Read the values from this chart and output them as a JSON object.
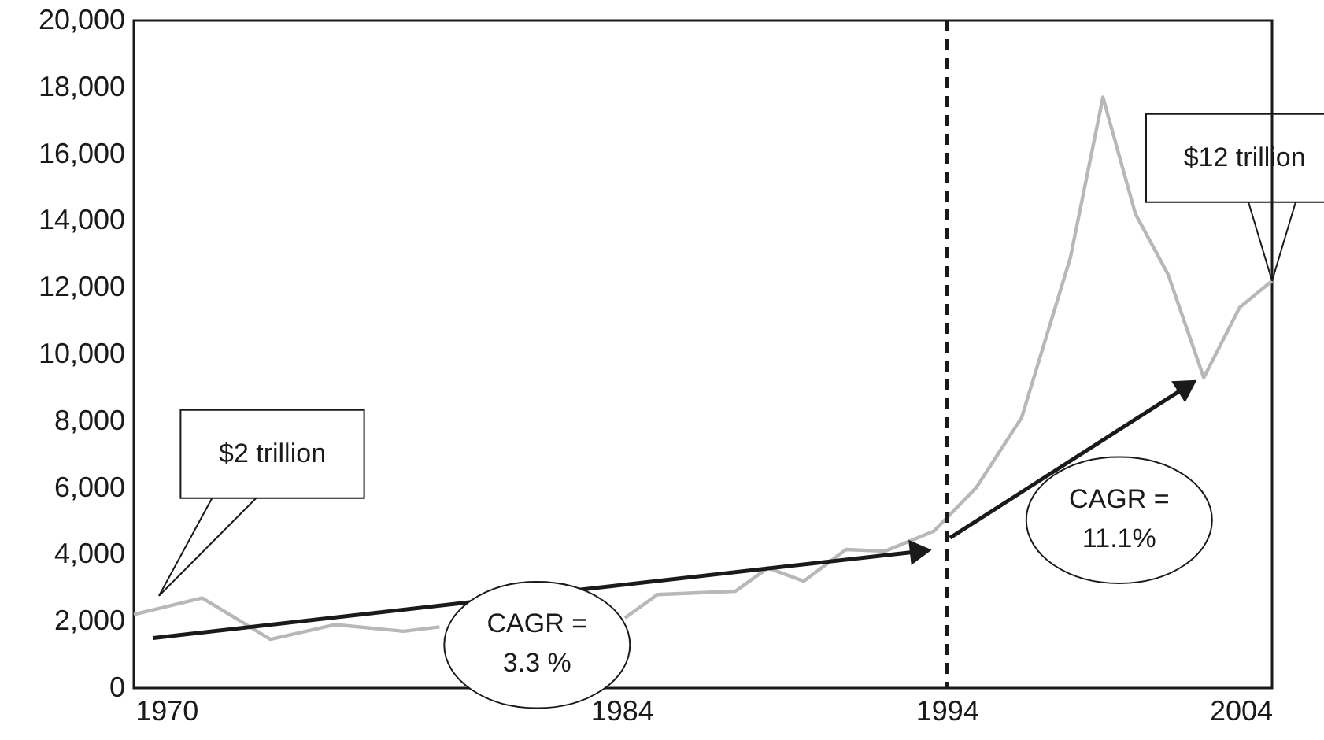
{
  "chart_data": {
    "type": "line",
    "xlim": [
      1969,
      2004
    ],
    "ylim": [
      0,
      20000
    ],
    "xticks": [
      1970,
      1984,
      1994,
      2004
    ],
    "yticks": [
      {
        "value": 0,
        "label": "0"
      },
      {
        "value": 2000,
        "label": "2,000"
      },
      {
        "value": 4000,
        "label": "4,000"
      },
      {
        "value": 6000,
        "label": "6,000"
      },
      {
        "value": 8000,
        "label": "8,000"
      },
      {
        "value": 10000,
        "label": "10,000"
      },
      {
        "value": 12000,
        "label": "12,000"
      },
      {
        "value": 14000,
        "label": "14,000"
      },
      {
        "value": 16000,
        "label": "16,000"
      },
      {
        "value": 18000,
        "label": "18,000"
      },
      {
        "value": 20000,
        "label": "20,000"
      }
    ],
    "grid": false,
    "series": [
      {
        "color": "#b8b8b8",
        "x": [
          1969,
          1971.1,
          1973.2,
          1975.2,
          1977.3,
          1978.4,
          1979.4,
          1984.1,
          1985.1,
          1987.5,
          1988.5,
          1989.6,
          1990.9,
          1992.1,
          1993.6,
          1994.9,
          1996.3,
          1997.8,
          1998.8,
          1999.8,
          2000.8,
          2001.9,
          2003.0,
          2004
        ],
        "values": [
          2200,
          2700,
          1460,
          1900,
          1700,
          1830,
          null,
          2100,
          2800,
          2900,
          3600,
          3200,
          4150,
          4100,
          4700,
          6000,
          8100,
          12900,
          17700,
          14200,
          12400,
          9300,
          11400,
          12200
        ]
      },
      {
        "color": "#1a1a1a",
        "marker": "triangle",
        "x": [
          1969.6,
          1993.2
        ],
        "values": [
          1500,
          4100
        ]
      },
      {
        "color": "#1a1a1a",
        "marker": "triangle",
        "x": [
          1994.1,
          2001.4
        ],
        "values": [
          4500,
          9050
        ]
      }
    ],
    "ref_lines": [
      {
        "axis": "x",
        "value": 1994,
        "line_style": "dashed",
        "color": "#1a1a1a"
      }
    ],
    "annotations": [
      "$2 trillion",
      {
        "text": "$12 trillion",
        "x": 2004,
        "y": 12200
      },
      "CAGR =\n3.3 %",
      "CAGR =\n11.1%"
    ]
  }
}
